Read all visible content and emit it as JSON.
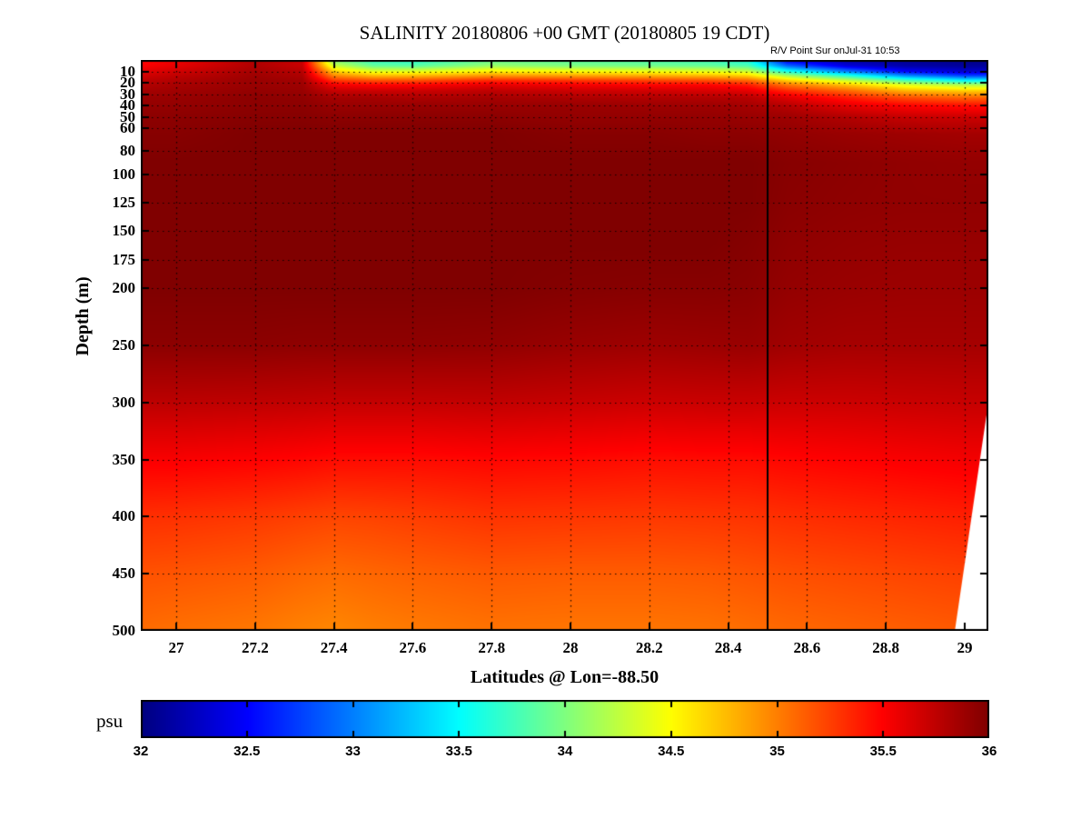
{
  "title": "SALINITY 20180806 +00 GMT (20180805 19 CDT)",
  "annotation": "R/V Point Sur onJul-31 10:53",
  "xlabel": "Latitudes @ Lon=-88.50",
  "ylabel": "Depth (m)",
  "colorbar_label": "psu",
  "chart_data": {
    "type": "heatmap",
    "title": "SALINITY 20180806 +00 GMT (20180805 19 CDT)",
    "xlabel": "Latitudes @ Lon=-88.50",
    "ylabel": "Depth (m)",
    "colorbar_label": "psu",
    "colormap": "jet",
    "clim": [
      32,
      36
    ],
    "xlim": [
      26.91,
      29.06
    ],
    "ylim": [
      0,
      500
    ],
    "grid_on": true,
    "x_ticks": [
      "27",
      "27.2",
      "27.4",
      "27.6",
      "27.8",
      "28",
      "28.2",
      "28.4",
      "28.6",
      "28.8",
      "29"
    ],
    "x_tick_values": [
      27,
      27.2,
      27.4,
      27.6,
      27.8,
      28,
      28.2,
      28.4,
      28.6,
      28.8,
      29
    ],
    "y_ticks": [
      "10",
      "20",
      "30",
      "40",
      "50",
      "60",
      "80",
      "100",
      "125",
      "150",
      "175",
      "200",
      "250",
      "300",
      "350",
      "400",
      "450",
      "500"
    ],
    "y_tick_values": [
      10,
      20,
      30,
      40,
      50,
      60,
      80,
      100,
      125,
      150,
      175,
      200,
      250,
      300,
      350,
      400,
      450,
      500
    ],
    "colorbar_ticks": [
      "32",
      "32.5",
      "33",
      "33.5",
      "34",
      "34.5",
      "35",
      "35.5",
      "36"
    ],
    "colorbar_tick_values": [
      32,
      32.5,
      33,
      33.5,
      34,
      34.5,
      35,
      35.5,
      36
    ],
    "ship_line_lat": 28.5,
    "annotation": "R/V Point Sur onJul-31 10:53",
    "missing_region": [
      [
        29.06,
        300
      ],
      [
        29.06,
        500
      ],
      [
        28.975,
        500
      ]
    ],
    "grid": {
      "lats": [
        26.9,
        27.0,
        27.2,
        27.32,
        27.4,
        27.5,
        27.6,
        27.8,
        28.0,
        28.2,
        28.35,
        28.45,
        28.55,
        28.7,
        28.85,
        29.0,
        29.06
      ],
      "depths": [
        0,
        5,
        10,
        14,
        18,
        22,
        27,
        33,
        40,
        50,
        65,
        90,
        125,
        160,
        200,
        250,
        300,
        350,
        400,
        450,
        500
      ],
      "salinity": [
        [
          35.45,
          35.55,
          35.8,
          35.7,
          34.0,
          33.7,
          33.65,
          33.9,
          33.85,
          33.8,
          33.75,
          33.6,
          32.4,
          32.15,
          32.1,
          32.05,
          32.05
        ],
        [
          35.5,
          35.6,
          35.82,
          35.72,
          34.3,
          33.9,
          33.85,
          34.1,
          34.0,
          33.95,
          33.9,
          33.8,
          32.9,
          32.35,
          32.15,
          32.1,
          32.1
        ],
        [
          35.6,
          35.68,
          35.85,
          35.78,
          34.7,
          34.4,
          34.4,
          34.55,
          34.5,
          34.45,
          34.4,
          34.3,
          33.6,
          33.0,
          32.5,
          32.3,
          32.3
        ],
        [
          35.68,
          35.75,
          35.88,
          35.82,
          35.0,
          34.8,
          34.8,
          34.95,
          34.9,
          34.85,
          34.8,
          34.7,
          34.2,
          33.7,
          33.1,
          32.8,
          32.8
        ],
        [
          35.75,
          35.8,
          35.9,
          35.86,
          35.3,
          35.2,
          35.2,
          35.35,
          35.3,
          35.25,
          35.2,
          35.1,
          34.7,
          34.3,
          33.8,
          33.5,
          33.5
        ],
        [
          35.8,
          35.84,
          35.9,
          35.88,
          35.55,
          35.5,
          35.5,
          35.6,
          35.55,
          35.5,
          35.5,
          35.4,
          35.05,
          34.75,
          34.4,
          34.2,
          34.2
        ],
        [
          35.85,
          35.87,
          35.92,
          35.9,
          35.72,
          35.7,
          35.7,
          35.75,
          35.7,
          35.68,
          35.65,
          35.6,
          35.35,
          35.1,
          34.8,
          34.7,
          34.7
        ],
        [
          35.9,
          35.9,
          35.95,
          35.93,
          35.85,
          35.85,
          35.82,
          35.85,
          35.82,
          35.8,
          35.8,
          35.78,
          35.62,
          35.4,
          35.2,
          35.1,
          35.1
        ],
        [
          35.92,
          35.92,
          35.95,
          35.95,
          35.9,
          35.9,
          35.9,
          35.9,
          35.9,
          35.88,
          35.88,
          35.85,
          35.78,
          35.6,
          35.5,
          35.45,
          35.45
        ],
        [
          35.95,
          35.95,
          35.97,
          35.97,
          35.95,
          35.95,
          35.95,
          35.95,
          35.92,
          35.92,
          35.92,
          35.9,
          35.88,
          35.8,
          35.72,
          35.7,
          35.7
        ],
        [
          35.97,
          35.97,
          36.0,
          36.0,
          36.0,
          36.0,
          36.0,
          36.0,
          35.97,
          35.97,
          35.95,
          35.95,
          35.93,
          35.9,
          35.88,
          35.86,
          35.86
        ],
        [
          36.0,
          36.0,
          36.0,
          36.0,
          36.0,
          36.0,
          36.0,
          36.0,
          36.0,
          36.0,
          36.0,
          36.0,
          35.97,
          35.95,
          35.93,
          35.92,
          35.92
        ],
        [
          36.0,
          36.0,
          36.0,
          36.0,
          36.0,
          36.0,
          36.0,
          36.0,
          36.0,
          36.0,
          36.0,
          36.0,
          35.96,
          35.94,
          35.93,
          35.93,
          35.93
        ],
        [
          36.0,
          36.0,
          36.0,
          36.0,
          36.0,
          36.0,
          36.0,
          36.0,
          36.0,
          36.0,
          36.0,
          35.98,
          35.94,
          35.92,
          35.91,
          35.91,
          35.91
        ],
        [
          36.0,
          36.0,
          36.0,
          36.0,
          36.0,
          36.0,
          36.0,
          36.0,
          35.98,
          35.97,
          35.97,
          35.96,
          35.92,
          35.9,
          35.89,
          35.89,
          35.89
        ],
        [
          35.95,
          35.95,
          35.95,
          35.94,
          35.94,
          35.94,
          35.94,
          35.93,
          35.9,
          35.88,
          35.89,
          35.9,
          35.87,
          35.85,
          35.85,
          35.85,
          35.85
        ],
        [
          35.76,
          35.76,
          35.75,
          35.74,
          35.73,
          35.73,
          35.73,
          35.74,
          35.72,
          35.7,
          35.71,
          35.71,
          35.7,
          35.7,
          35.71,
          35.72,
          35.72
        ],
        [
          35.52,
          35.52,
          35.5,
          35.48,
          35.46,
          35.46,
          35.46,
          35.48,
          35.47,
          35.45,
          35.46,
          35.46,
          35.48,
          35.5,
          35.52,
          35.54,
          35.54
        ],
        [
          35.32,
          35.31,
          35.28,
          35.25,
          35.23,
          35.24,
          35.26,
          35.3,
          35.29,
          35.28,
          35.29,
          35.3,
          35.32,
          35.34,
          35.36,
          35.38,
          35.38
        ],
        [
          35.18,
          35.17,
          35.14,
          35.1,
          35.08,
          35.1,
          35.12,
          35.15,
          35.14,
          35.14,
          35.15,
          35.17,
          35.19,
          35.21,
          35.23,
          35.25,
          35.25
        ],
        [
          35.08,
          35.06,
          35.03,
          34.99,
          34.97,
          35.0,
          35.02,
          35.05,
          35.04,
          35.04,
          35.05,
          35.07,
          35.09,
          35.11,
          35.13,
          35.15,
          35.15
        ]
      ]
    }
  }
}
